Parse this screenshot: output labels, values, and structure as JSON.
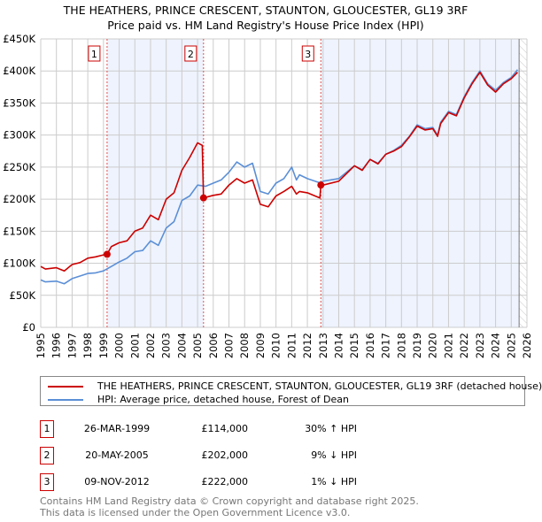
{
  "title_line1": "THE HEATHERS, PRINCE CRESCENT, STAUNTON, GLOUCESTER, GL19 3RF",
  "title_line2": "Price paid vs. HM Land Registry's House Price Index (HPI)",
  "chart_data": {
    "type": "line",
    "xlim": [
      1995,
      2026
    ],
    "ylim": [
      0,
      450000
    ],
    "x_ticks": [
      "1995",
      "1996",
      "1997",
      "1998",
      "1999",
      "2000",
      "2001",
      "2002",
      "2003",
      "2004",
      "2005",
      "2006",
      "2007",
      "2008",
      "2009",
      "2010",
      "2011",
      "2012",
      "2013",
      "2014",
      "2015",
      "2016",
      "2017",
      "2018",
      "2019",
      "2020",
      "2021",
      "2022",
      "2023",
      "2024",
      "2025",
      "2026"
    ],
    "y_ticks": [
      {
        "v": 0,
        "label": "£0"
      },
      {
        "v": 50000,
        "label": "£50K"
      },
      {
        "v": 100000,
        "label": "£100K"
      },
      {
        "v": 150000,
        "label": "£150K"
      },
      {
        "v": 200000,
        "label": "£200K"
      },
      {
        "v": 250000,
        "label": "£250K"
      },
      {
        "v": 300000,
        "label": "£300K"
      },
      {
        "v": 350000,
        "label": "£350K"
      },
      {
        "v": 400000,
        "label": "£400K"
      },
      {
        "v": 450000,
        "label": "£450K"
      }
    ],
    "grid": true,
    "shaded_ranges": [
      [
        1999.23,
        2005.38
      ],
      [
        2012.86,
        2025.5
      ]
    ],
    "future_hatch_from": 2025.5,
    "series": [
      {
        "name": "THE HEATHERS, PRINCE CRESCENT, STAUNTON, GLOUCESTER, GL19 3RF (detached house)",
        "color": "#cc0000",
        "x": [
          1995,
          1995.3,
          1996,
          1996.5,
          1997,
          1997.5,
          1998,
          1998.5,
          1999,
          1999.23,
          1999.5,
          2000,
          2000.5,
          2001,
          2001.5,
          2002,
          2002.5,
          2003,
          2003.5,
          2004,
          2004.5,
          2005,
          2005.3,
          2005.38,
          2006,
          2006.5,
          2007,
          2007.5,
          2008,
          2008.5,
          2009,
          2009.5,
          2010,
          2010.5,
          2011,
          2011.3,
          2011.5,
          2012,
          2012.8,
          2012.86,
          2013,
          2014,
          2015,
          2015.5,
          2016,
          2016.5,
          2017,
          2017.5,
          2018,
          2018.5,
          2019,
          2019.5,
          2020,
          2020.3,
          2020.5,
          2021,
          2021.5,
          2022,
          2022.5,
          2023,
          2023.5,
          2024,
          2024.5,
          2025,
          2025.4
        ],
        "y": [
          95000,
          91000,
          93000,
          88000,
          98000,
          101000,
          108000,
          110000,
          113000,
          114000,
          126000,
          132000,
          135000,
          150000,
          155000,
          175000,
          168000,
          200000,
          210000,
          245000,
          265000,
          288000,
          284000,
          202000,
          206000,
          208000,
          222000,
          232000,
          225000,
          230000,
          192000,
          188000,
          205000,
          212000,
          220000,
          208000,
          212000,
          210000,
          202000,
          222000,
          222000,
          228000,
          252000,
          245000,
          262000,
          255000,
          270000,
          275000,
          282000,
          297000,
          314000,
          308000,
          310000,
          298000,
          318000,
          335000,
          330000,
          358000,
          380000,
          398000,
          378000,
          367000,
          380000,
          388000,
          398000
        ]
      },
      {
        "name": "HPI: Average price, detached house, Forest of Dean",
        "color": "#5b8fd6",
        "x": [
          1995,
          1995.3,
          1996,
          1996.5,
          1997,
          1997.5,
          1998,
          1998.5,
          1999,
          1999.5,
          2000,
          2000.5,
          2001,
          2001.5,
          2002,
          2002.5,
          2003,
          2003.5,
          2004,
          2004.5,
          2005,
          2005.5,
          2006,
          2006.5,
          2007,
          2007.5,
          2008,
          2008.5,
          2009,
          2009.5,
          2010,
          2010.5,
          2011,
          2011.3,
          2011.5,
          2012,
          2012.86,
          2013,
          2014,
          2015,
          2015.5,
          2016,
          2016.5,
          2017,
          2017.5,
          2018,
          2018.5,
          2019,
          2019.5,
          2020,
          2020.3,
          2020.5,
          2021,
          2021.5,
          2022,
          2022.5,
          2023,
          2023.5,
          2024,
          2024.5,
          2025,
          2025.4
        ],
        "y": [
          74000,
          71000,
          72000,
          68000,
          76000,
          80000,
          84000,
          85000,
          88000,
          95000,
          102000,
          108000,
          118000,
          120000,
          135000,
          128000,
          155000,
          165000,
          198000,
          205000,
          222000,
          220000,
          225000,
          230000,
          242000,
          258000,
          250000,
          256000,
          212000,
          208000,
          225000,
          232000,
          250000,
          230000,
          238000,
          232000,
          225000,
          228000,
          232000,
          252000,
          246000,
          262000,
          256000,
          270000,
          276000,
          284000,
          298000,
          316000,
          310000,
          312000,
          300000,
          320000,
          337000,
          332000,
          360000,
          382000,
          400000,
          380000,
          370000,
          382000,
          390000,
          402000
        ]
      }
    ],
    "sales": [
      {
        "x": 1999.23,
        "y": 114000
      },
      {
        "x": 2005.38,
        "y": 202000
      },
      {
        "x": 2012.86,
        "y": 222000
      }
    ]
  },
  "legend": {
    "items": [
      {
        "label": "THE HEATHERS, PRINCE CRESCENT, STAUNTON, GLOUCESTER, GL19 3RF (detached house)",
        "color": "#cc0000"
      },
      {
        "label": "HPI: Average price, detached house, Forest of Dean",
        "color": "#5b8fd6"
      }
    ]
  },
  "transactions": [
    {
      "n": "1",
      "date": "26-MAR-1999",
      "price": "£114,000",
      "delta": "30% ↑ HPI"
    },
    {
      "n": "2",
      "date": "20-MAY-2005",
      "price": "£202,000",
      "delta": "9% ↓ HPI"
    },
    {
      "n": "3",
      "date": "09-NOV-2012",
      "price": "£222,000",
      "delta": "1% ↓ HPI"
    }
  ],
  "footer": {
    "line1": "Contains HM Land Registry data © Crown copyright and database right 2025.",
    "line2": "This data is licensed under the Open Government Licence v3.0."
  }
}
